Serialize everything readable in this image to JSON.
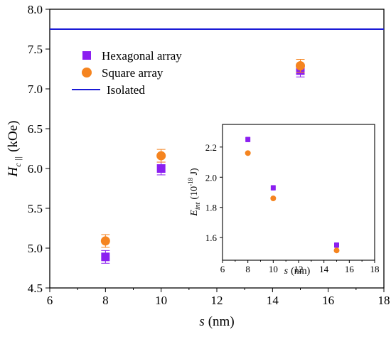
{
  "chart_data": [
    {
      "type": "scatter",
      "title": "",
      "xlabel_main": "s",
      "xlabel_unit": "(nm)",
      "ylabel_main": "H",
      "ylabel_sub": "c ||",
      "ylabel_unit": "(kOe)",
      "xlim": [
        6,
        18
      ],
      "ylim": [
        4.5,
        8.0
      ],
      "xticks": [
        6,
        8,
        10,
        12,
        14,
        16,
        18
      ],
      "yticks": [
        4.5,
        5.0,
        5.5,
        6.0,
        6.5,
        7.0,
        7.5,
        8.0
      ],
      "legend_position": "top-left",
      "series": [
        {
          "name": "Hexagonal array",
          "marker": "square",
          "color": "#8B1FF0",
          "x": [
            8,
            10,
            15
          ],
          "y": [
            4.89,
            6.0,
            7.23
          ],
          "yerr": [
            0.08,
            0.08,
            0.08
          ]
        },
        {
          "name": "Square array",
          "marker": "circle",
          "color": "#F5841F",
          "x": [
            8,
            10,
            15
          ],
          "y": [
            5.09,
            6.16,
            7.29
          ],
          "yerr": [
            0.08,
            0.08,
            0.08
          ]
        }
      ],
      "reference_lines": [
        {
          "name": "Isolated",
          "y": 7.75,
          "color": "#1A1AD6"
        }
      ]
    },
    {
      "type": "scatter",
      "title": "",
      "xlabel_main": "s",
      "xlabel_unit": "(nm)",
      "ylabel_main": "E",
      "ylabel_sub": "int",
      "ylabel_unit": "(10",
      "ylabel_exp": "-18",
      "ylabel_end": " J)",
      "xlim": [
        6,
        18
      ],
      "ylim": [
        1.45,
        2.35
      ],
      "xticks": [
        6,
        8,
        10,
        12,
        14,
        16,
        18
      ],
      "yticks": [
        1.6,
        1.8,
        2.0,
        2.2
      ],
      "series": [
        {
          "name": "Hexagonal array",
          "marker": "square",
          "color": "#8B1FF0",
          "x": [
            8,
            10,
            15
          ],
          "y": [
            2.25,
            1.93,
            1.55
          ],
          "yerr": [
            0.015,
            0.015,
            0.015
          ]
        },
        {
          "name": "Square array",
          "marker": "circle",
          "color": "#F5841F",
          "x": [
            8,
            10,
            15
          ],
          "y": [
            2.16,
            1.86,
            1.515
          ],
          "yerr": [
            0.01,
            0.01,
            0.01
          ]
        }
      ]
    }
  ]
}
